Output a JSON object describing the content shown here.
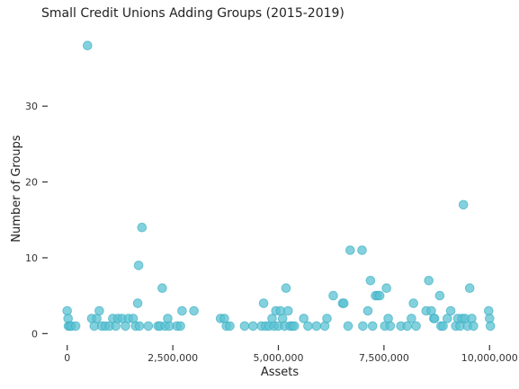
{
  "chart_data": {
    "type": "scatter",
    "title": "Small Credit Unions Adding Groups (2015-2019)",
    "xlabel": "Assets",
    "ylabel": "Number of Groups",
    "xlim": [
      -250000,
      10250000
    ],
    "ylim": [
      -1.5,
      39.5
    ],
    "xticks": [
      0,
      2500000,
      5000000,
      7500000,
      10000000
    ],
    "xtick_labels": [
      "0",
      "2,500,000",
      "5,000,000",
      "7,500,000",
      "10,000,000"
    ],
    "yticks": [
      0,
      10,
      20,
      30
    ],
    "ytick_labels": [
      "0",
      "10",
      "20",
      "30"
    ],
    "grid": false,
    "color": "#5bc2d3",
    "points": [
      [
        0,
        3
      ],
      [
        20000,
        2
      ],
      [
        30000,
        1
      ],
      [
        60000,
        1
      ],
      [
        100000,
        1
      ],
      [
        200000,
        1
      ],
      [
        480000,
        38
      ],
      [
        580000,
        2
      ],
      [
        640000,
        1
      ],
      [
        700000,
        2
      ],
      [
        760000,
        3
      ],
      [
        820000,
        1
      ],
      [
        900000,
        1
      ],
      [
        1000000,
        1
      ],
      [
        1080000,
        2
      ],
      [
        1150000,
        1
      ],
      [
        1200000,
        2
      ],
      [
        1300000,
        2
      ],
      [
        1380000,
        1
      ],
      [
        1450000,
        2
      ],
      [
        1560000,
        2
      ],
      [
        1620000,
        1
      ],
      [
        1670000,
        4
      ],
      [
        1690000,
        9
      ],
      [
        1710000,
        1
      ],
      [
        1770000,
        14
      ],
      [
        1920000,
        1
      ],
      [
        2150000,
        1
      ],
      [
        2200000,
        1
      ],
      [
        2250000,
        6
      ],
      [
        2320000,
        1
      ],
      [
        2380000,
        2
      ],
      [
        2420000,
        1
      ],
      [
        2600000,
        1
      ],
      [
        2680000,
        1
      ],
      [
        2720000,
        3
      ],
      [
        3000000,
        3
      ],
      [
        3630000,
        2
      ],
      [
        3720000,
        2
      ],
      [
        3770000,
        1
      ],
      [
        3850000,
        1
      ],
      [
        4200000,
        1
      ],
      [
        4400000,
        1
      ],
      [
        4600000,
        1
      ],
      [
        4650000,
        4
      ],
      [
        4700000,
        1
      ],
      [
        4780000,
        1
      ],
      [
        4850000,
        2
      ],
      [
        4900000,
        1
      ],
      [
        4940000,
        3
      ],
      [
        5000000,
        1
      ],
      [
        5050000,
        3
      ],
      [
        5100000,
        2
      ],
      [
        5150000,
        1
      ],
      [
        5180000,
        6
      ],
      [
        5230000,
        3
      ],
      [
        5280000,
        1
      ],
      [
        5330000,
        1
      ],
      [
        5380000,
        1
      ],
      [
        5600000,
        2
      ],
      [
        5700000,
        1
      ],
      [
        5900000,
        1
      ],
      [
        6100000,
        1
      ],
      [
        6150000,
        2
      ],
      [
        6300000,
        5
      ],
      [
        6520000,
        4
      ],
      [
        6550000,
        4
      ],
      [
        6650000,
        1
      ],
      [
        6700000,
        11
      ],
      [
        6980000,
        11
      ],
      [
        7000000,
        1
      ],
      [
        7120000,
        3
      ],
      [
        7180000,
        7
      ],
      [
        7230000,
        1
      ],
      [
        7300000,
        5
      ],
      [
        7350000,
        5
      ],
      [
        7400000,
        5
      ],
      [
        7520000,
        1
      ],
      [
        7560000,
        6
      ],
      [
        7600000,
        2
      ],
      [
        7650000,
        1
      ],
      [
        7900000,
        1
      ],
      [
        8050000,
        1
      ],
      [
        8150000,
        2
      ],
      [
        8200000,
        4
      ],
      [
        8260000,
        1
      ],
      [
        8500000,
        3
      ],
      [
        8560000,
        7
      ],
      [
        8620000,
        3
      ],
      [
        8680000,
        2
      ],
      [
        8700000,
        2
      ],
      [
        8820000,
        5
      ],
      [
        8850000,
        1
      ],
      [
        8900000,
        1
      ],
      [
        9000000,
        2
      ],
      [
        9080000,
        3
      ],
      [
        9200000,
        1
      ],
      [
        9250000,
        2
      ],
      [
        9300000,
        1
      ],
      [
        9350000,
        2
      ],
      [
        9380000,
        17
      ],
      [
        9420000,
        2
      ],
      [
        9480000,
        1
      ],
      [
        9530000,
        6
      ],
      [
        9580000,
        2
      ],
      [
        9620000,
        1
      ],
      [
        9980000,
        3
      ],
      [
        10000000,
        2
      ],
      [
        10020000,
        1
      ]
    ]
  }
}
